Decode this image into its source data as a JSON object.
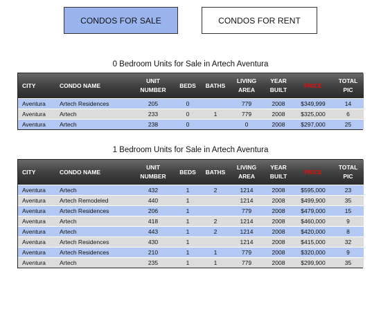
{
  "tabs": {
    "sale_label": "CONDOS FOR SALE",
    "rent_label": "CONDOS FOR RENT"
  },
  "headers": {
    "city": "CITY",
    "condo_name": "CONDO NAME",
    "unit_number": "UNIT NUMBER",
    "beds": "BEDS",
    "baths": "BATHS",
    "living_area": "LIVING AREA",
    "year_built": "YEAR BUILT",
    "price": "PRICE",
    "total_pic": "TOTAL PIC"
  },
  "sections": [
    {
      "title": "0 Bedroom Units for Sale in Artech Aventura",
      "rows": [
        {
          "city": "Aventura",
          "name": "Artech Residences",
          "unit": "205",
          "beds": "0",
          "baths": "",
          "area": "779",
          "year": "2008",
          "price": "$349,999",
          "pics": "14"
        },
        {
          "city": "Aventura",
          "name": "Artech",
          "unit": "233",
          "beds": "0",
          "baths": "1",
          "area": "779",
          "year": "2008",
          "price": "$325,000",
          "pics": "6"
        },
        {
          "city": "Aventura",
          "name": "Artech",
          "unit": "238",
          "beds": "0",
          "baths": "",
          "area": "0",
          "year": "2008",
          "price": "$297,000",
          "pics": "25"
        }
      ]
    },
    {
      "title": "1 Bedroom Units for Sale in Artech Aventura",
      "rows": [
        {
          "city": "Aventura",
          "name": "Artech",
          "unit": "432",
          "beds": "1",
          "baths": "2",
          "area": "1214",
          "year": "2008",
          "price": "$595,000",
          "pics": "23"
        },
        {
          "city": "Aventura",
          "name": "Artech Remodeled",
          "unit": "440",
          "beds": "1",
          "baths": "",
          "area": "1214",
          "year": "2008",
          "price": "$499,900",
          "pics": "35"
        },
        {
          "city": "Aventura",
          "name": "Artech Residences",
          "unit": "206",
          "beds": "1",
          "baths": "",
          "area": "779",
          "year": "2008",
          "price": "$479,000",
          "pics": "15"
        },
        {
          "city": "Aventura",
          "name": "Artech",
          "unit": "418",
          "beds": "1",
          "baths": "2",
          "area": "1214",
          "year": "2008",
          "price": "$460,000",
          "pics": "9"
        },
        {
          "city": "Aventura",
          "name": "Artech",
          "unit": "443",
          "beds": "1",
          "baths": "2",
          "area": "1214",
          "year": "2008",
          "price": "$420,000",
          "pics": "8"
        },
        {
          "city": "Aventura",
          "name": "Artech Residences",
          "unit": "430",
          "beds": "1",
          "baths": "",
          "area": "1214",
          "year": "2008",
          "price": "$415,000",
          "pics": "32"
        },
        {
          "city": "Aventura",
          "name": "Artech Residences",
          "unit": "210",
          "beds": "1",
          "baths": "1",
          "area": "779",
          "year": "2008",
          "price": "$320,000",
          "pics": "9"
        },
        {
          "city": "Aventura",
          "name": "Artech",
          "unit": "235",
          "beds": "1",
          "baths": "1",
          "area": "779",
          "year": "2008",
          "price": "$299,900",
          "pics": "35"
        }
      ]
    }
  ]
}
